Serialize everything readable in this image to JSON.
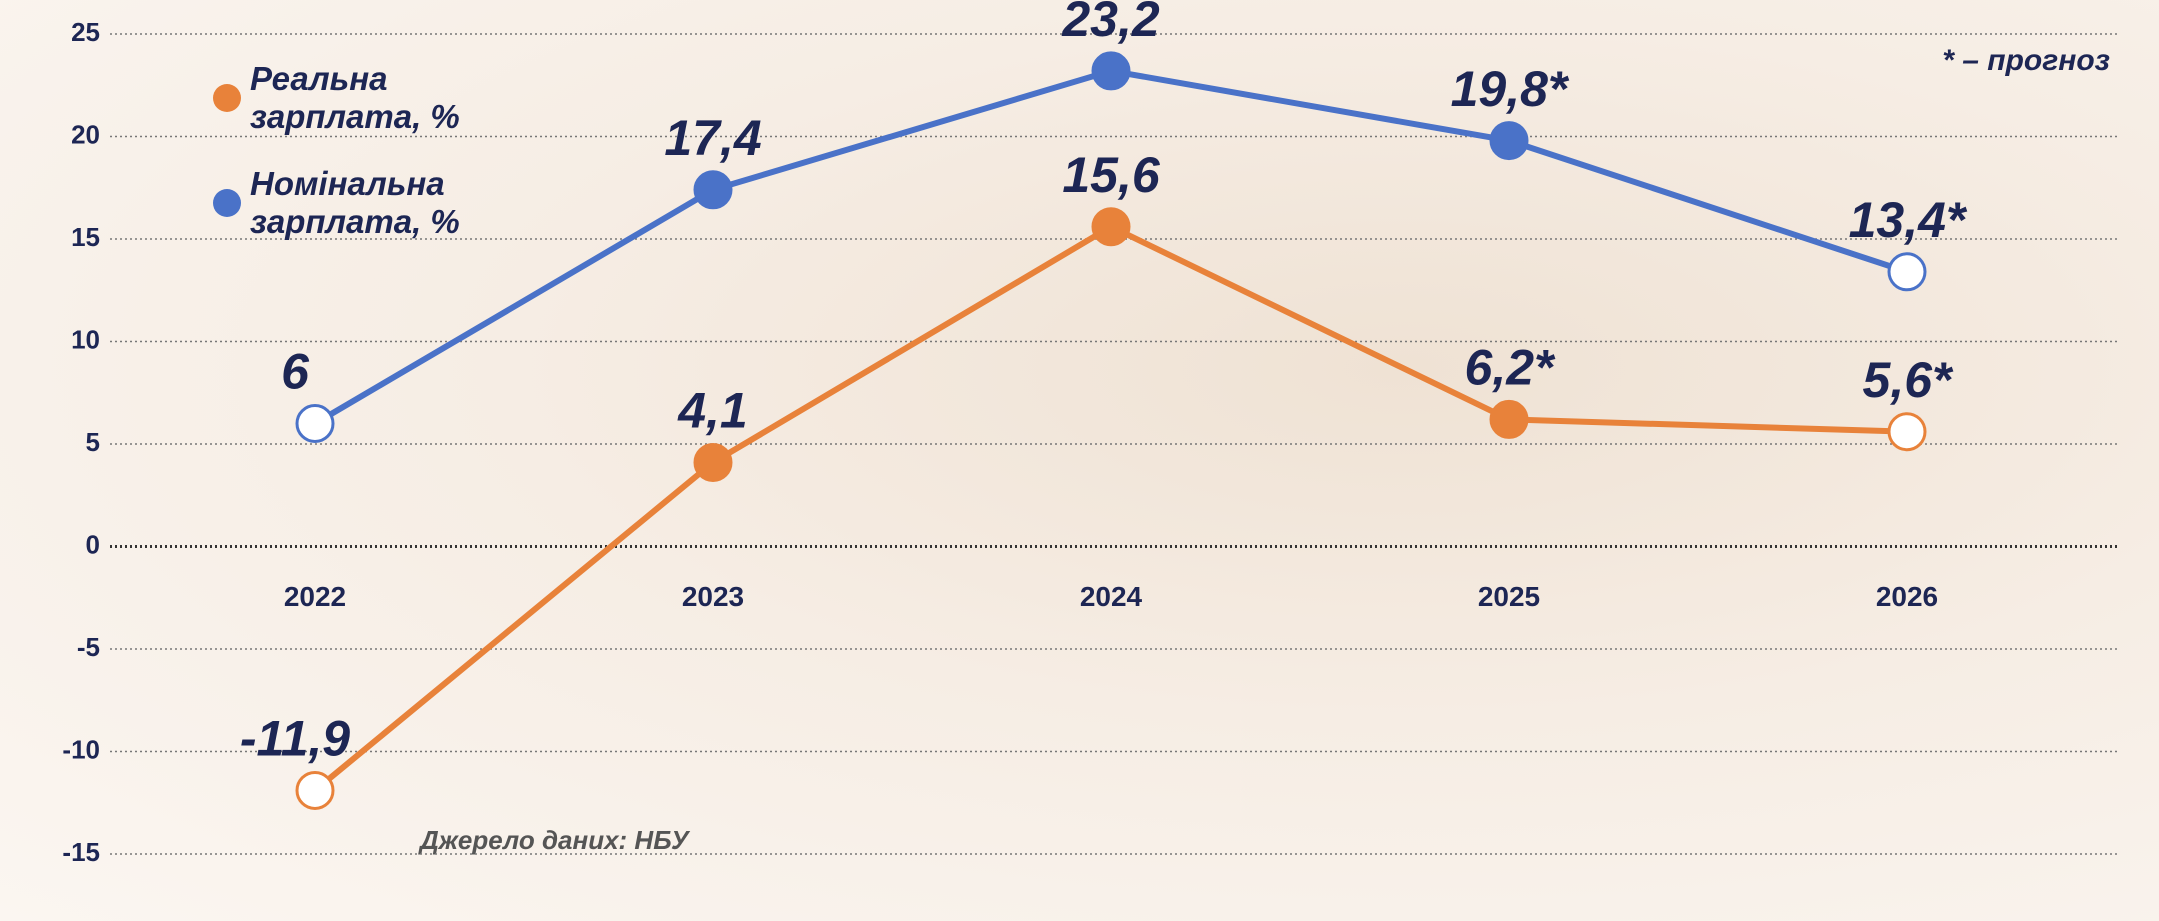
{
  "chart_data": {
    "type": "line",
    "categories": [
      "2022",
      "2023",
      "2024",
      "2025",
      "2026"
    ],
    "series": [
      {
        "name": "Реальна зарплата, %",
        "color": "#e8823a",
        "values": [
          -11.9,
          4.1,
          15.6,
          6.2,
          5.6
        ],
        "value_labels": [
          "-11,9",
          "4,1",
          "15,6",
          "6,2*",
          "5,6*"
        ]
      },
      {
        "name": "Номінальна зарплата, %",
        "color": "#4a72c8",
        "values": [
          6,
          17.4,
          23.2,
          19.8,
          13.4
        ],
        "value_labels": [
          "6",
          "17,4",
          "23,2",
          "19,8*",
          "13,4*"
        ]
      }
    ],
    "ylim": [
      -15,
      25
    ],
    "yticks": [
      25,
      20,
      15,
      10,
      5,
      0,
      -5,
      -10,
      -15
    ],
    "grid": true,
    "note": "* – прогноз",
    "source": "Джерело даних: НБУ"
  }
}
